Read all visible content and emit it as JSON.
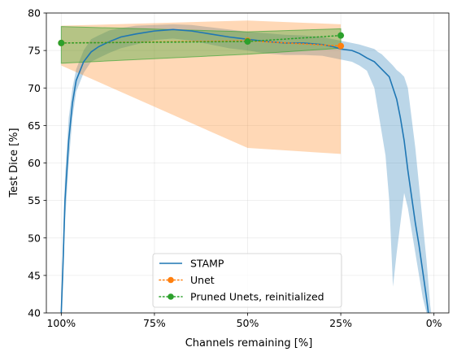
{
  "chart_data": {
    "type": "line",
    "title": "",
    "xlabel": "Channels remaining [%]",
    "ylabel": "Test Dice [%]",
    "x_axis_reversed": true,
    "xlim": [
      104,
      -4
    ],
    "ylim": [
      40,
      80
    ],
    "xticks": [
      {
        "value": 100,
        "label": "100%"
      },
      {
        "value": 75,
        "label": "75%"
      },
      {
        "value": 50,
        "label": "50%"
      },
      {
        "value": 25,
        "label": "25%"
      },
      {
        "value": 0,
        "label": "0%"
      }
    ],
    "yticks": [
      40,
      45,
      50,
      55,
      60,
      65,
      70,
      75,
      80
    ],
    "grid": true,
    "legend_position": "lower-center",
    "colors": {
      "stamp": "#1f77b4",
      "unet": "#ff7f0e",
      "pruned": "#2ca02c"
    },
    "series": [
      {
        "name": "STAMP",
        "style": "solid line with shaded band",
        "color": "#1f77b4",
        "x": [
          100,
          99.5,
          99,
          98,
          97,
          96,
          94,
          92,
          90,
          87,
          84,
          80,
          75,
          70,
          65,
          60,
          55,
          50,
          45,
          40,
          35,
          30,
          27,
          25,
          22,
          20,
          18,
          16,
          15,
          14,
          13,
          12,
          11,
          10,
          9,
          8,
          7,
          6,
          5,
          4,
          3,
          2,
          1.5,
          1,
          0.5
        ],
        "y": [
          40,
          47,
          55,
          63,
          68,
          71,
          73.5,
          74.8,
          75.5,
          76.2,
          76.8,
          77.2,
          77.6,
          77.8,
          77.6,
          77.2,
          76.8,
          76.5,
          76.2,
          76,
          76,
          75.8,
          75.5,
          75.2,
          75,
          74.6,
          74,
          73.5,
          73,
          72.5,
          72,
          71.5,
          70,
          68.5,
          66,
          63,
          59,
          55.5,
          52,
          49,
          45.5,
          42,
          40,
          38,
          36
        ],
        "upper": [
          41,
          50,
          58,
          66,
          70,
          72.5,
          75,
          76.5,
          77,
          77.7,
          78,
          78.3,
          78.4,
          78.5,
          78.4,
          78.1,
          77.8,
          77.5,
          77.3,
          77.1,
          77,
          76.8,
          76.5,
          76.3,
          76,
          75.8,
          75.5,
          75.2,
          74.8,
          74.5,
          74,
          73.5,
          73,
          72.4,
          72,
          71.5,
          70,
          66,
          62,
          57,
          52,
          47,
          44,
          41,
          39
        ],
        "lower": [
          39,
          44,
          52,
          60,
          66,
          69.5,
          72,
          73.5,
          74,
          74.7,
          75.3,
          75.8,
          76.4,
          76.6,
          76.3,
          75.8,
          75.3,
          75,
          74.6,
          74.4,
          74.4,
          74.3,
          74,
          73.8,
          73.5,
          73,
          72.3,
          70,
          67,
          64,
          61,
          55,
          43.5,
          48,
          52,
          56,
          54,
          51,
          48,
          45,
          42,
          40,
          38,
          36,
          34
        ]
      },
      {
        "name": "Unet",
        "style": "dotted line with circle markers and shaded band",
        "color": "#ff7f0e",
        "x": [
          100,
          50,
          25
        ],
        "y": [
          76,
          76.3,
          75.6
        ],
        "upper": [
          78.3,
          79,
          78.5
        ],
        "lower": [
          73,
          62,
          61.2
        ]
      },
      {
        "name": "Pruned Unets, reinitialized",
        "style": "dotted line with circle markers and shaded band",
        "color": "#2ca02c",
        "x": [
          100,
          50,
          25
        ],
        "y": [
          76,
          76.2,
          77
        ],
        "upper": [
          78.2,
          77.5,
          77.9
        ],
        "lower": [
          73.3,
          74.5,
          75.3
        ]
      }
    ]
  }
}
